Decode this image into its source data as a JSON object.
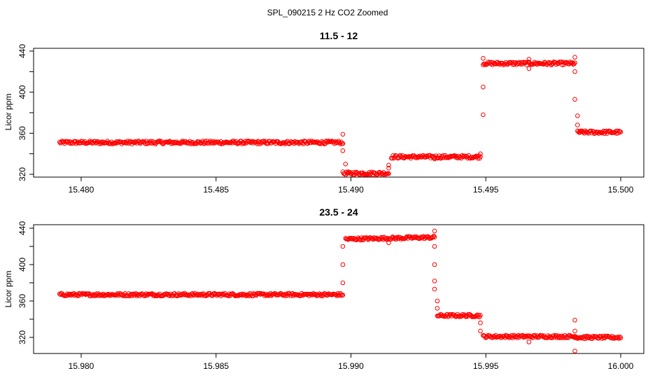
{
  "figure_title": "SPL_090215  2 Hz CO2 Zoomed",
  "point_color": "#ff0000",
  "chart_data": [
    {
      "type": "scatter",
      "title": "11.5 - 12",
      "ylabel": "Licor ppm",
      "xlabel": "",
      "xlim": [
        15.4791,
        15.5
      ],
      "ylim": [
        320,
        440
      ],
      "x_ticks": [
        15.48,
        15.485,
        15.49,
        15.495,
        15.5
      ],
      "x_tick_labels": [
        "15.480",
        "15.485",
        "15.490",
        "15.495",
        "15.500"
      ],
      "y_ticks": [
        320,
        360,
        400,
        440
      ],
      "y_tick_labels": [
        "320",
        "360",
        "400",
        "440"
      ],
      "grid": false,
      "series": [
        {
          "x": [
            15.4792,
            15.4897,
            15.4897,
            15.4899,
            15.4914,
            15.4915,
            15.4948,
            15.4949,
            15.4983,
            15.4984,
            15.5
          ],
          "values": [
            351,
            351,
            321,
            321,
            321,
            337,
            337,
            428,
            428,
            361,
            361
          ]
        }
      ],
      "outliers": [
        {
          "x": 15.4897,
          "y": 359
        },
        {
          "x": 15.4897,
          "y": 343
        },
        {
          "x": 15.4898,
          "y": 330
        },
        {
          "x": 15.4914,
          "y": 329
        },
        {
          "x": 15.4914,
          "y": 326
        },
        {
          "x": 15.4931,
          "y": 335
        },
        {
          "x": 15.4948,
          "y": 340
        },
        {
          "x": 15.4949,
          "y": 378
        },
        {
          "x": 15.4949,
          "y": 405
        },
        {
          "x": 15.4949,
          "y": 433
        },
        {
          "x": 15.4966,
          "y": 423
        },
        {
          "x": 15.4966,
          "y": 432
        },
        {
          "x": 15.4983,
          "y": 434
        },
        {
          "x": 15.4983,
          "y": 420
        },
        {
          "x": 15.4983,
          "y": 393
        },
        {
          "x": 15.4984,
          "y": 377
        },
        {
          "x": 15.4984,
          "y": 368
        },
        {
          "x": 15.4985,
          "y": 362
        }
      ]
    },
    {
      "type": "scatter",
      "title": "23.5 - 24",
      "ylabel": "Licor ppm",
      "xlabel": "",
      "xlim": [
        15.9791,
        16.0
      ],
      "ylim": [
        320,
        440
      ],
      "x_ticks": [
        15.98,
        15.985,
        15.99,
        15.995,
        16.0
      ],
      "x_tick_labels": [
        "15.980",
        "15.985",
        "15.990",
        "15.995",
        "16.000"
      ],
      "y_ticks": [
        320,
        360,
        400,
        440
      ],
      "y_tick_labels": [
        "320",
        "360",
        "400",
        "440"
      ],
      "grid": false,
      "series": [
        {
          "x": [
            15.9792,
            15.9897,
            15.9898,
            15.9931,
            15.9932,
            15.9948,
            15.9949,
            15.9983,
            15.9984,
            16.0
          ],
          "values": [
            367,
            367,
            428,
            430,
            344,
            344,
            321,
            321,
            320,
            320
          ]
        }
      ],
      "outliers": [
        {
          "x": 15.9897,
          "y": 380
        },
        {
          "x": 15.9897,
          "y": 400
        },
        {
          "x": 15.9897,
          "y": 420
        },
        {
          "x": 15.9914,
          "y": 424
        },
        {
          "x": 15.9931,
          "y": 437
        },
        {
          "x": 15.9931,
          "y": 420
        },
        {
          "x": 15.9931,
          "y": 400
        },
        {
          "x": 15.9931,
          "y": 382
        },
        {
          "x": 15.9931,
          "y": 373
        },
        {
          "x": 15.9932,
          "y": 360
        },
        {
          "x": 15.9932,
          "y": 352
        },
        {
          "x": 15.9948,
          "y": 336
        },
        {
          "x": 15.9948,
          "y": 327
        },
        {
          "x": 15.9966,
          "y": 315
        },
        {
          "x": 15.9983,
          "y": 305
        },
        {
          "x": 15.9983,
          "y": 339
        },
        {
          "x": 15.9983,
          "y": 327
        }
      ]
    }
  ]
}
